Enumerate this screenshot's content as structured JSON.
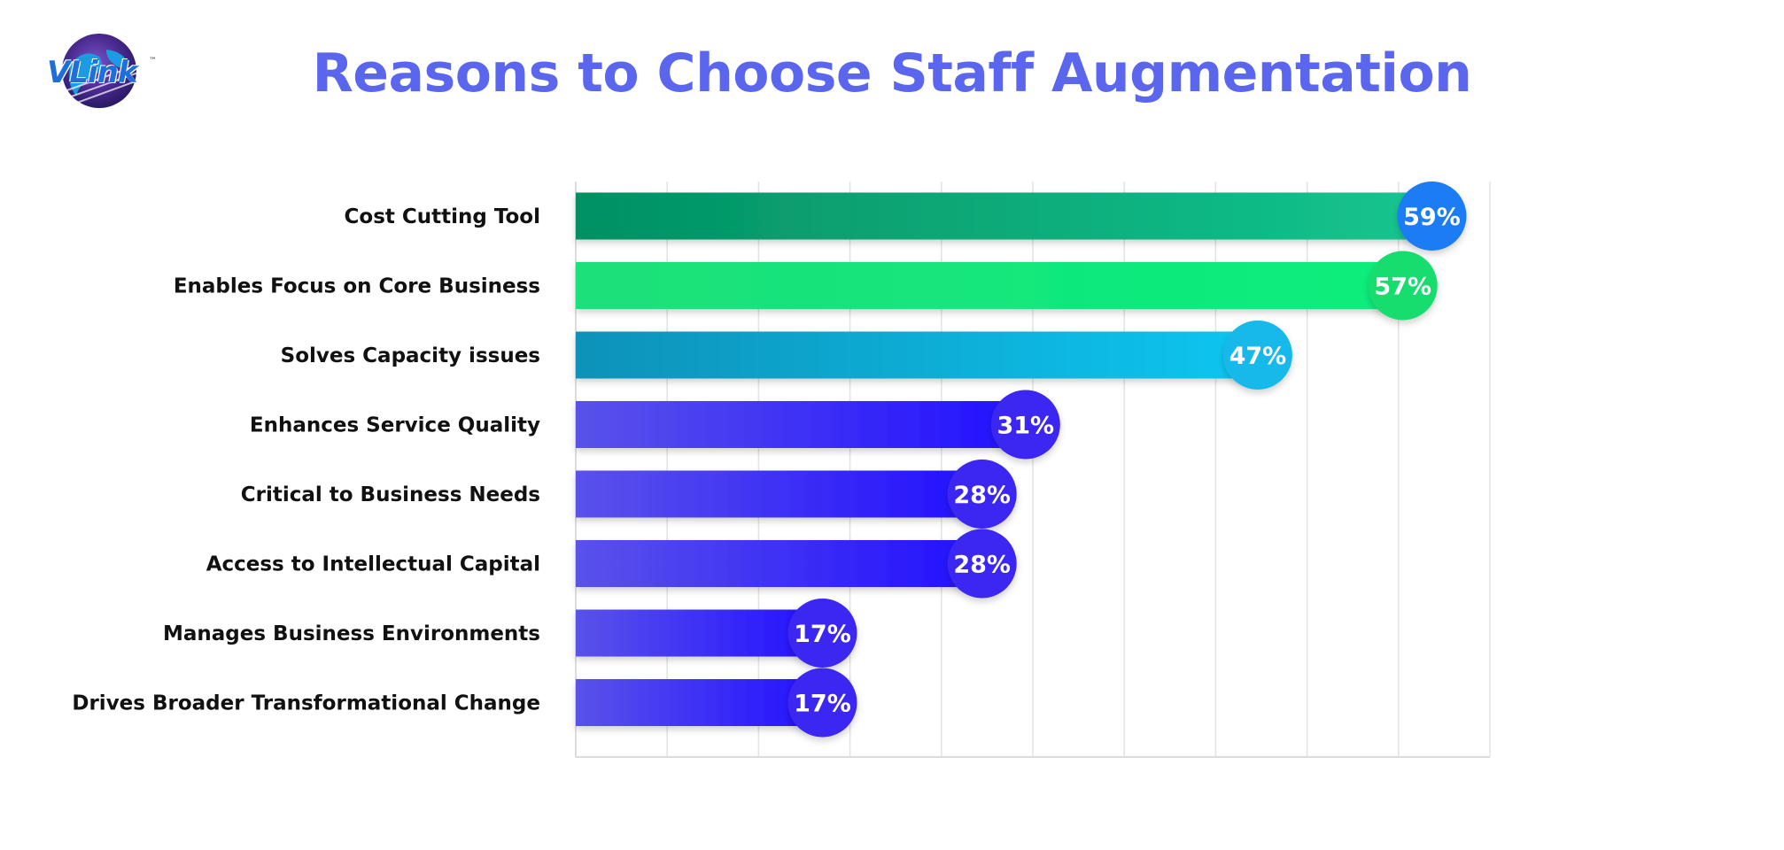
{
  "logo": {
    "text": "VLink",
    "tm": "™"
  },
  "chart_data": {
    "type": "bar",
    "orientation": "horizontal",
    "title": "Reasons to Choose Staff Augmentation",
    "categories": [
      "Cost Cutting Tool",
      "Enables Focus on Core Business",
      "Solves Capacity issues",
      "Enhances Service Quality",
      "Critical to Business Needs",
      "Access to Intellectual Capital",
      "Manages Business Environments",
      "Drives Broader Transformational Change"
    ],
    "values": [
      59,
      57,
      47,
      31,
      28,
      28,
      17,
      17
    ],
    "value_labels": [
      "59%",
      "57%",
      "47%",
      "31%",
      "28%",
      "28%",
      "17%",
      "17%"
    ],
    "xlim": [
      0,
      63
    ],
    "grid": true,
    "xlabel": "",
    "ylabel": "",
    "colors": {
      "bar_green_dark": [
        "#039063",
        "#14c58f"
      ],
      "bar_green_bright": [
        "#1ee07a",
        "#08ee7c"
      ],
      "bar_cyan": [
        "#0792b9",
        "#0bc6f0"
      ],
      "bar_violet": [
        "#5a52ea",
        "#2210ff"
      ],
      "badge_blue": "#1e7cf3",
      "badge_green": "#12dd6e",
      "badge_cyan": "#15b9ea",
      "badge_violet": "#3a25f2"
    }
  }
}
